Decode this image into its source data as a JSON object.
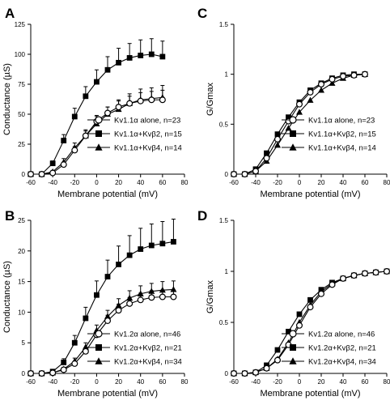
{
  "chart_data": [
    {
      "panel_label": "A",
      "type": "line",
      "xlabel": "Membrane potential (mV)",
      "ylabel": "Conductance (µS)",
      "xlim": [
        -60,
        80
      ],
      "ylim": [
        0,
        125
      ],
      "xticks": [
        "-60",
        "-40",
        "-20",
        "0",
        "20",
        "40",
        "60",
        "80"
      ],
      "yticks": [
        "0",
        "25",
        "50",
        "75",
        "100",
        "125"
      ],
      "x": [
        -60,
        -50,
        -40,
        -30,
        -20,
        -10,
        0,
        10,
        20,
        30,
        40,
        50,
        60
      ],
      "series": [
        {
          "name": "Kv1.1α alone, n=23",
          "marker": "open-circle",
          "values": [
            0,
            0,
            1,
            8,
            20,
            32,
            44,
            51,
            56,
            59,
            61,
            62,
            62
          ],
          "err": [
            0,
            0,
            1,
            2,
            3,
            4,
            5,
            5,
            6,
            6,
            7,
            7,
            8
          ]
        },
        {
          "name": "Kv1.1α+Kvβ2, n=15",
          "marker": "filled-square",
          "values": [
            0,
            0,
            9,
            28,
            48,
            65,
            77,
            87,
            93,
            97,
            99,
            100,
            98
          ],
          "err": [
            0,
            0,
            2,
            5,
            7,
            8,
            10,
            11,
            12,
            12,
            13,
            13,
            13
          ]
        },
        {
          "name": "Kv1.1α+Kvβ4, n=14",
          "marker": "filled-triangle",
          "values": [
            0,
            0,
            2,
            10,
            22,
            32,
            42,
            50,
            54,
            59,
            62,
            63,
            64
          ],
          "err": [
            0,
            0,
            1,
            3,
            4,
            5,
            6,
            6,
            7,
            8,
            9,
            9,
            10
          ]
        }
      ]
    },
    {
      "panel_label": "C",
      "type": "line",
      "xlabel": "Membrane potential (mV)",
      "ylabel": "G/Gmax",
      "xlim": [
        -60,
        80
      ],
      "ylim": [
        0,
        1.5
      ],
      "xticks": [
        "-60",
        "-40",
        "-20",
        "0",
        "20",
        "40",
        "60",
        "80"
      ],
      "yticks": [
        "0",
        "0.5",
        "1",
        "1.5"
      ],
      "x": [
        -60,
        -50,
        -40,
        -30,
        -20,
        -10,
        0,
        10,
        20,
        30,
        40,
        50,
        60
      ],
      "series": [
        {
          "name": "Kv1.1α alone, n=23",
          "marker": "open-circle",
          "values": [
            0,
            0,
            0.03,
            0.16,
            0.35,
            0.53,
            0.7,
            0.82,
            0.9,
            0.95,
            0.98,
            0.99,
            1.0
          ]
        },
        {
          "name": "Kv1.1α+Kvβ2, n=15",
          "marker": "filled-square",
          "values": [
            0,
            0,
            0.05,
            0.21,
            0.4,
            0.57,
            0.72,
            0.84,
            0.91,
            0.96,
            0.99,
            1.0,
            1.0
          ]
        },
        {
          "name": "Kv1.1α+Kvβ4, n=14",
          "marker": "filled-triangle",
          "values": [
            0,
            0,
            0.03,
            0.13,
            0.29,
            0.46,
            0.62,
            0.74,
            0.84,
            0.91,
            0.96,
            0.99,
            1.0
          ]
        }
      ]
    },
    {
      "panel_label": "B",
      "type": "line",
      "xlabel": "Membrane potential (mV)",
      "ylabel": "Conductance (µS)",
      "xlim": [
        -60,
        80
      ],
      "ylim": [
        0,
        25
      ],
      "xticks": [
        "-60",
        "-40",
        "-20",
        "0",
        "20",
        "40",
        "60",
        "80"
      ],
      "yticks": [
        "0",
        "5",
        "10",
        "15",
        "20",
        "25"
      ],
      "x": [
        -60,
        -50,
        -40,
        -30,
        -20,
        -10,
        0,
        10,
        20,
        30,
        40,
        50,
        60,
        70
      ],
      "series": [
        {
          "name": "Kv1.2α alone, n=46",
          "marker": "open-circle",
          "values": [
            0,
            0,
            0.1,
            0.6,
            1.6,
            3.6,
            6.3,
            8.6,
            10.3,
            11.4,
            12.0,
            12.4,
            12.5,
            12.5
          ],
          "err": [
            0,
            0,
            0.1,
            0.2,
            0.3,
            0.5,
            0.7,
            0.9,
            1.0,
            1.0,
            1.1,
            1.1,
            1.1,
            1.1
          ]
        },
        {
          "name": "Kv1.2α+Kvβ2, n=21",
          "marker": "filled-square",
          "values": [
            0,
            0,
            0.3,
            1.8,
            5.0,
            9.0,
            12.8,
            15.8,
            17.8,
            19.3,
            20.3,
            20.9,
            21.2,
            21.5
          ],
          "err": [
            0,
            0,
            0.2,
            0.6,
            1.2,
            1.8,
            2.3,
            2.7,
            3.0,
            3.2,
            3.4,
            3.5,
            3.6,
            3.7
          ]
        },
        {
          "name": "Kv1.2α+Kvβ4, n=34",
          "marker": "filled-triangle",
          "values": [
            0,
            0,
            0.1,
            0.7,
            2.0,
            4.3,
            7.0,
            9.3,
            11.1,
            12.3,
            13.0,
            13.4,
            13.6,
            13.7
          ],
          "err": [
            0,
            0,
            0.1,
            0.3,
            0.5,
            0.7,
            0.9,
            1.0,
            1.1,
            1.2,
            1.3,
            1.3,
            1.4,
            1.4
          ]
        }
      ]
    },
    {
      "panel_label": "D",
      "type": "line",
      "xlabel": "Membrane potential (mV)",
      "ylabel": "G/Gmax",
      "xlim": [
        -60,
        80
      ],
      "ylim": [
        0,
        1.5
      ],
      "xticks": [
        "-60",
        "-40",
        "-20",
        "0",
        "20",
        "40",
        "60",
        "80"
      ],
      "yticks": [
        "0",
        "0.5",
        "1",
        "1.5"
      ],
      "x": [
        -60,
        -50,
        -40,
        -30,
        -20,
        -10,
        0,
        10,
        20,
        30,
        40,
        50,
        60,
        70,
        80
      ],
      "series": [
        {
          "name": "Kv1.2α alone, n=46",
          "marker": "open-circle",
          "values": [
            0,
            0,
            0.01,
            0.05,
            0.13,
            0.28,
            0.47,
            0.65,
            0.78,
            0.87,
            0.93,
            0.96,
            0.98,
            0.99,
            1.0
          ]
        },
        {
          "name": "Kv1.2α+Kvβ2, n=21",
          "marker": "filled-square",
          "values": [
            0,
            0,
            0.01,
            0.08,
            0.23,
            0.41,
            0.58,
            0.72,
            0.82,
            0.89,
            0.93,
            0.96,
            0.98,
            0.99,
            1.0
          ]
        },
        {
          "name": "Kv1.2α+Kvβ4, n=34",
          "marker": "filled-triangle",
          "values": [
            0,
            0,
            0.01,
            0.05,
            0.14,
            0.3,
            0.5,
            0.67,
            0.8,
            0.88,
            0.93,
            0.96,
            0.98,
            0.99,
            1.0
          ]
        }
      ]
    }
  ]
}
